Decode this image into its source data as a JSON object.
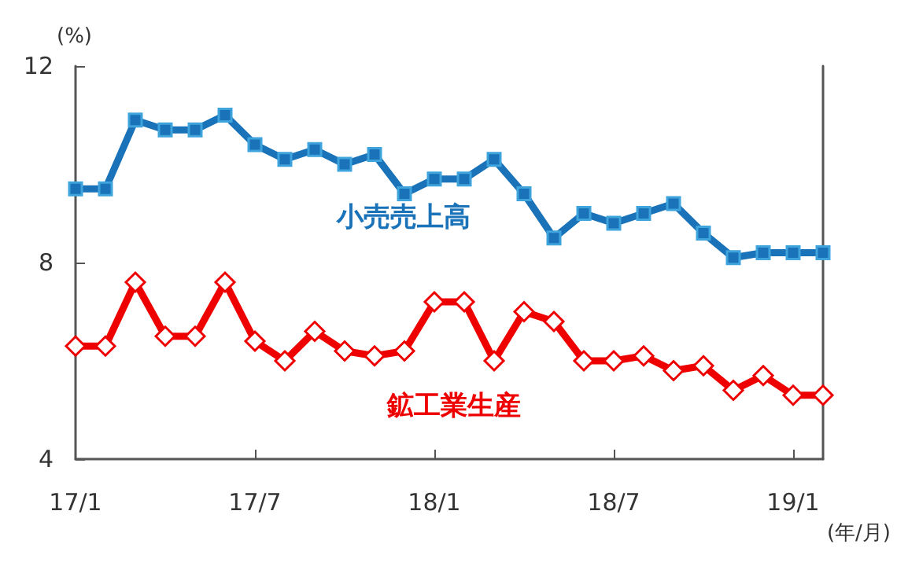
{
  "chart_data": {
    "type": "line",
    "xlabel": "(年/月)",
    "ylabel": "(%)",
    "categories": [
      "17/1",
      null,
      null,
      null,
      null,
      null,
      "17/7",
      null,
      null,
      null,
      null,
      null,
      "18/1",
      null,
      null,
      null,
      null,
      null,
      "18/7",
      null,
      null,
      null,
      null,
      null,
      "19/1",
      null
    ],
    "series": [
      {
        "name": "小売売上高",
        "color": "#1a72b8",
        "marker": "square",
        "values": [
          9.5,
          9.5,
          10.9,
          10.7,
          10.7,
          11.0,
          10.4,
          10.1,
          10.3,
          10.0,
          10.2,
          9.4,
          9.7,
          9.7,
          10.1,
          9.4,
          8.5,
          9.0,
          8.8,
          9.0,
          9.2,
          8.6,
          8.1,
          8.2,
          8.2,
          8.2
        ]
      },
      {
        "name": "鉱工業生産",
        "color": "#ee0000",
        "marker": "diamond",
        "values": [
          6.3,
          6.3,
          7.6,
          6.5,
          6.5,
          7.6,
          6.4,
          6.0,
          6.6,
          6.2,
          6.1,
          6.2,
          7.2,
          7.2,
          6.0,
          7.0,
          6.8,
          6.0,
          6.0,
          6.1,
          5.8,
          5.9,
          5.4,
          5.7,
          5.3,
          5.3
        ]
      }
    ],
    "ylim": [
      4,
      12
    ],
    "yticks": [
      4,
      8,
      12
    ],
    "grid": false,
    "legend": false,
    "line_style": "solid"
  }
}
